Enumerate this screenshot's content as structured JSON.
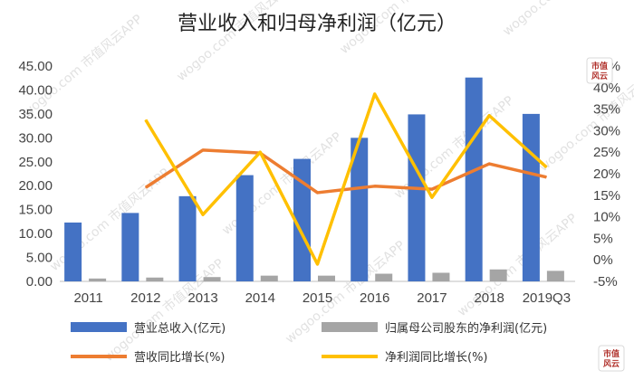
{
  "chart_data": {
    "type": "bar",
    "title": "营业收入和归母净利润（亿元）",
    "categories": [
      "2011",
      "2012",
      "2013",
      "2014",
      "2015",
      "2016",
      "2017",
      "2018",
      "2019Q3"
    ],
    "series": [
      {
        "name": "营业总收入(亿元)",
        "type": "bar",
        "axis": "left",
        "color": "#4472c4",
        "values": [
          12.3,
          14.3,
          17.8,
          22.2,
          25.6,
          30.0,
          34.9,
          42.6,
          35.0
        ]
      },
      {
        "name": "归属母公司股东的净利润(亿元)",
        "type": "bar",
        "axis": "left",
        "color": "#a5a5a5",
        "values": [
          0.6,
          0.8,
          0.9,
          1.2,
          1.2,
          1.6,
          1.8,
          2.5,
          2.2
        ]
      },
      {
        "name": "营收同比增长(%)",
        "type": "line",
        "axis": "right",
        "color": "#ed7d31",
        "values": [
          null,
          16.8,
          25.5,
          24.8,
          15.6,
          17.1,
          16.4,
          22.3,
          19.2
        ]
      },
      {
        "name": "净利润同比增长(%)",
        "type": "line",
        "axis": "right",
        "color": "#ffc000",
        "values": [
          null,
          32.5,
          10.5,
          25.0,
          -1.0,
          38.5,
          14.5,
          33.5,
          21.5
        ]
      }
    ],
    "y_left": {
      "min": 0,
      "max": 45,
      "step": 5,
      "tick_labels": [
        "0.00",
        "5.00",
        "10.00",
        "15.00",
        "20.00",
        "25.00",
        "30.00",
        "35.00",
        "40.00",
        "45.00"
      ]
    },
    "y_right": {
      "min": -5,
      "max": 45,
      "step": 5,
      "tick_labels": [
        "-5%",
        "0%",
        "5%",
        "10%",
        "15%",
        "20%",
        "25%",
        "30%",
        "35%",
        "40%",
        "45%"
      ]
    },
    "grid": false,
    "legend_placement": "bottom"
  },
  "watermark": {
    "text": "wogoo.com  市值风云APP"
  },
  "logo": {
    "line1": "市值",
    "line2": "风云"
  }
}
